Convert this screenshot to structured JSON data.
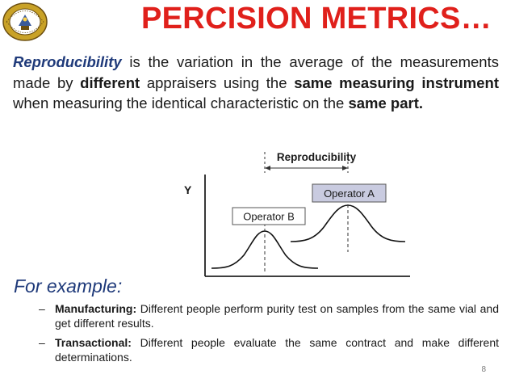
{
  "slide": {
    "title": "PERCISION METRICS…",
    "page_number": "8"
  },
  "logo": {
    "icon": "university-seal-icon",
    "colors": {
      "ring": "#c9a227",
      "inner": "#ffffff",
      "border": "#6b4e10"
    }
  },
  "definition": {
    "term": "Reproducibility",
    "text_1": " is the variation in the average of the measurements made by ",
    "bold_1": "different",
    "text_2": " appraisers using the ",
    "bold_2": "same measuring instrument",
    "text_3": " when measuring the identical characteristic on the ",
    "bold_3": "same part."
  },
  "diagram": {
    "span_label": "Reproducibility",
    "y_label": "Y",
    "operator_a": "Operator A",
    "operator_b": "Operator B"
  },
  "example": {
    "heading": "For example:",
    "items": [
      {
        "label": "Manufacturing:",
        "text": "  Different people perform purity test on samples from the same vial and get different results."
      },
      {
        "label": "Transactional:",
        "text": "  Different people evaluate the same contract and make different determinations."
      }
    ]
  },
  "colors": {
    "title": "#e0201b",
    "accent_blue": "#1f3a7a",
    "operator_a_box": "#c9cbe0",
    "operator_b_box": "#ffffff"
  }
}
